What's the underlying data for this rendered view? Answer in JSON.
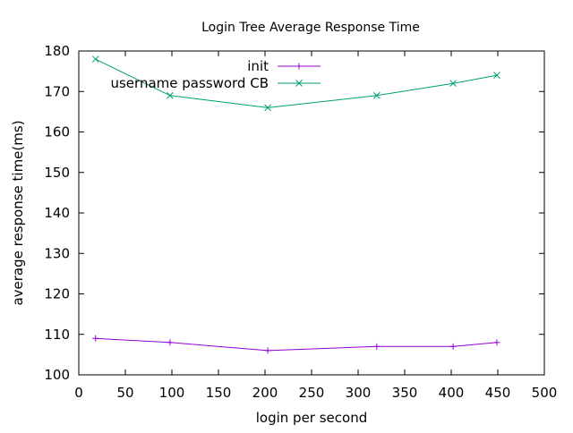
{
  "chart_data": {
    "type": "line",
    "title": "Login Tree Average Response Time",
    "xlabel": "login per second",
    "ylabel": "average response time(ms)",
    "xlim": [
      0,
      500
    ],
    "ylim": [
      100,
      180
    ],
    "xticks": [
      0,
      50,
      100,
      150,
      200,
      250,
      300,
      350,
      400,
      450,
      500
    ],
    "yticks": [
      100,
      110,
      120,
      130,
      140,
      150,
      160,
      170,
      180
    ],
    "grid": false,
    "legend_position": "top-center",
    "series": [
      {
        "name": "init",
        "color": "#9400d3",
        "marker": "plus",
        "x": [
          18,
          98,
          203,
          320,
          402,
          449
        ],
        "y": [
          109,
          108,
          106,
          107,
          107,
          108
        ]
      },
      {
        "name": "username password CB",
        "color": "#009e73",
        "marker": "cross",
        "x": [
          18,
          98,
          203,
          320,
          402,
          449
        ],
        "y": [
          178,
          169,
          166,
          169,
          172,
          174
        ]
      }
    ]
  }
}
